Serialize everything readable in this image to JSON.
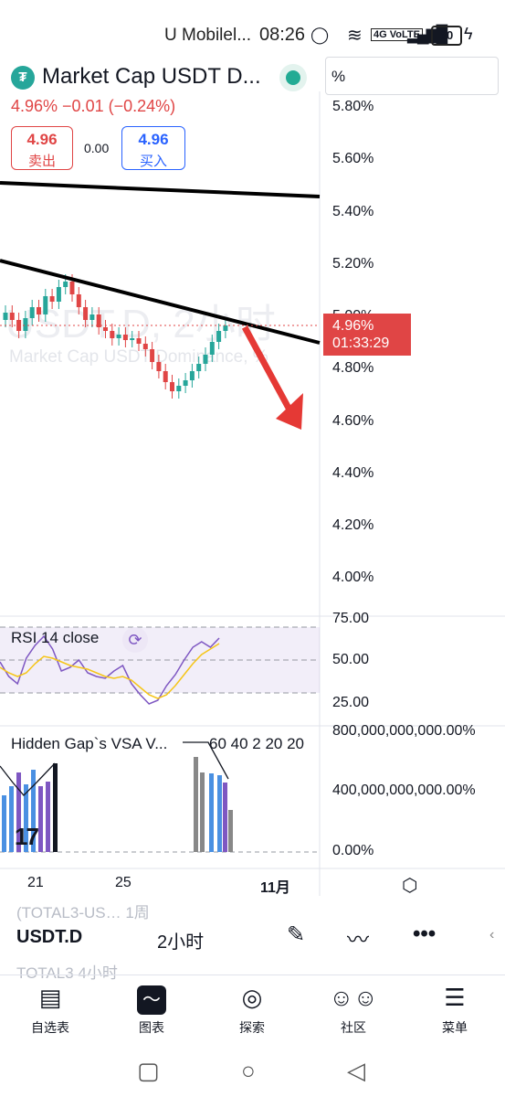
{
  "status_bar": {
    "carrier": "U Mobilel...",
    "time": "08:26",
    "network_icons": "4G VoLTE",
    "battery": "30"
  },
  "header": {
    "logo_glyph": "₮",
    "title": "Market Cap USDT D...",
    "unit_selector": "%",
    "change_text": "4.96%  −0.01 (−0.24%)",
    "sell": {
      "value": "4.96",
      "label": "卖出"
    },
    "spread": "0.00",
    "buy": {
      "value": "4.96",
      "label": "买入"
    }
  },
  "watermark": {
    "big": "USDT.D, 2小时",
    "small": "Market Cap USDT Dominance, %"
  },
  "price_axis": {
    "labels": [
      "5.80%",
      "5.60%",
      "5.40%",
      "5.20%",
      "5.00%",
      "4.80%",
      "4.60%",
      "4.40%",
      "4.20%",
      "4.00%"
    ],
    "current_price": "4.96%",
    "countdown": "01:33:29"
  },
  "rsi": {
    "label": "RSI 14 close",
    "levels": [
      "75.00",
      "50.00",
      "25.00"
    ]
  },
  "vsa": {
    "label": "Hidden Gap`s VSA V...",
    "inputs": "60 40 2 20 20",
    "levels": [
      "800,000,000,000.00%",
      "400,000,000,000.00%",
      "0.00%"
    ],
    "logo": "17"
  },
  "date_axis": {
    "labels": [
      "21",
      "25",
      "11月"
    ]
  },
  "symbol_row": {
    "ghost_prev": "(TOTAL3-US…  1周",
    "symbol": "USDT.D",
    "interval": "2小时",
    "ghost_next": "TOTAL3          4小时"
  },
  "bottom_nav": [
    {
      "label": "自选表",
      "icon": "watchlist-icon"
    },
    {
      "label": "图表",
      "icon": "chart-icon"
    },
    {
      "label": "探索",
      "icon": "compass-icon"
    },
    {
      "label": "社区",
      "icon": "community-icon"
    },
    {
      "label": "菜单",
      "icon": "menu-icon"
    }
  ],
  "colors": {
    "up": "#26a69a",
    "down": "#e04545",
    "rsi": "#7e57c2",
    "buy": "#2962ff",
    "arrow": "#e53935"
  }
}
